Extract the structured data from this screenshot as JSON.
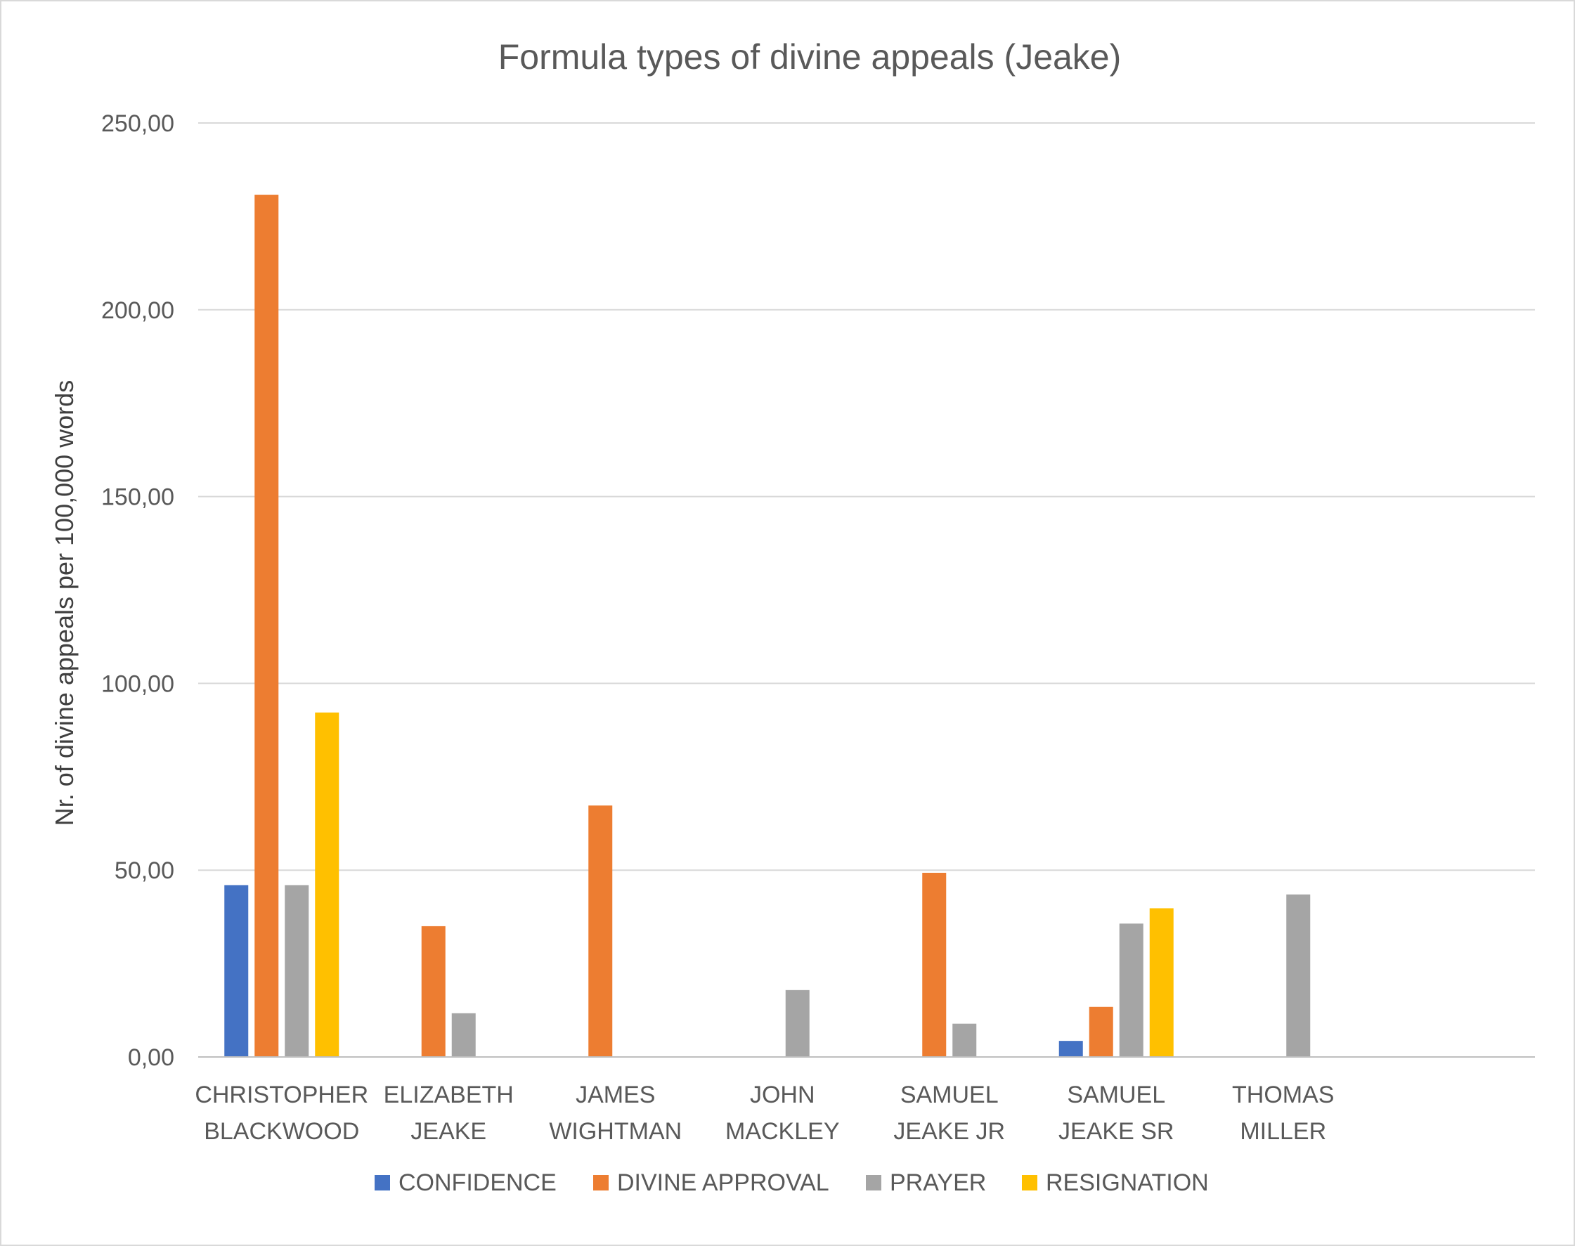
{
  "chart_data": {
    "type": "bar",
    "title": "Formula types of divine appeals (Jeake)",
    "ylabel": "Nr. of divine appeals per 100,000 words",
    "xlabel": "",
    "ylim": [
      0,
      250
    ],
    "yticks": [
      "0,00",
      "50,00",
      "100,00",
      "150,00",
      "200,00",
      "250,00"
    ],
    "grid": true,
    "legend_position": "bottom",
    "categories": [
      [
        "CHRISTOPHER",
        "BLACKWOOD"
      ],
      [
        "ELIZABETH",
        "JEAKE"
      ],
      [
        "JAMES",
        "WIGHTMAN"
      ],
      [
        "JOHN",
        "MACKLEY"
      ],
      [
        "SAMUEL",
        "JEAKE JR"
      ],
      [
        "SAMUEL",
        "JEAKE SR"
      ],
      [
        "THOMAS",
        "MILLER"
      ]
    ],
    "series": [
      {
        "name": "CONFIDENCE",
        "color": "#4472c4",
        "values": [
          46,
          0,
          0,
          0,
          0,
          4.3,
          0
        ]
      },
      {
        "name": "DIVINE APPROVAL",
        "color": "#ed7d31",
        "values": [
          230.8,
          35,
          67.3,
          0,
          49.3,
          13.4,
          0
        ]
      },
      {
        "name": "PRAYER",
        "color": "#a5a5a5",
        "values": [
          46,
          11.7,
          0,
          17.9,
          8.9,
          35.7,
          43.5
        ]
      },
      {
        "name": "RESIGNATION",
        "color": "#ffc000",
        "values": [
          92.2,
          0,
          0,
          0,
          0,
          39.8,
          0
        ]
      }
    ]
  }
}
